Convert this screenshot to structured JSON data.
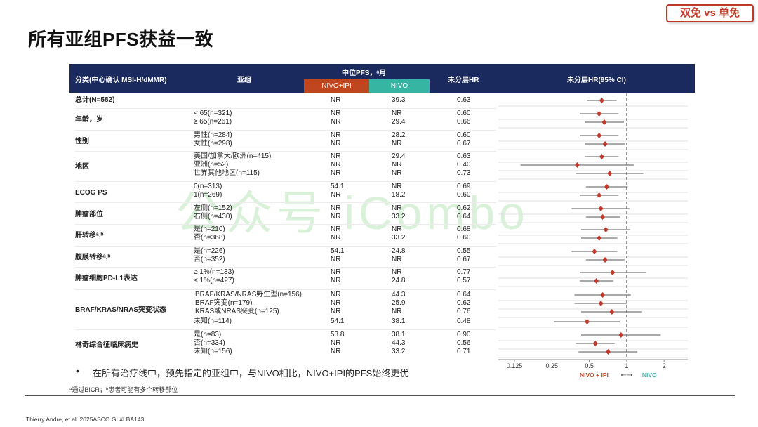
{
  "tag": "双免 vs 单免",
  "title": "所有亚组PFS获益一致",
  "header": {
    "col_category": "分类(中心确认 MSI-H/dMMR)",
    "col_subgroup": "亚组",
    "col_median": "中位PFS，ᵃ月",
    "col_nivo_ipi": "NIVO+IPI",
    "col_nivo": "NIVO",
    "col_hr": "未分层HR",
    "col_plot": "未分层HR(95% CI)"
  },
  "watermark": "公众号 iCombo",
  "bullet": "在所有治疗线中，预先指定的亚组中，与NIVO相比，NIVO+IPI的PFS始终更优",
  "footnote": "ᵃ通过BICR；ᵇ患者可能有多个转移部位",
  "citation": "Thierry Andre, et al. 2025ASCO GI.#LBA143.",
  "chart_data": {
    "type": "forest",
    "xscale": "log2",
    "xlim": [
      0.125,
      2
    ],
    "xticks": [
      "0.125",
      "0.25",
      "0.5",
      "1",
      "2"
    ],
    "reference_line": 1,
    "favors_left": "NIVO + IPI",
    "favors_right": "NIVO",
    "favors_arrow": "←→",
    "rows": [
      {
        "group": "总计(N=582)",
        "sub": "",
        "nivo_ipi": "NR",
        "nivo": "39.3",
        "hr": "0.63",
        "hr_v": 0.63,
        "lo": 0.48,
        "hi": 0.83
      },
      {
        "group": "年龄，岁",
        "sub": "< 65(n=321)",
        "nivo_ipi": "NR",
        "nivo": "NR",
        "hr": "0.60",
        "hr_v": 0.6,
        "lo": 0.42,
        "hi": 0.86
      },
      {
        "group": "",
        "sub": "≥ 65(n=261)",
        "nivo_ipi": "NR",
        "nivo": "29.4",
        "hr": "0.66",
        "hr_v": 0.66,
        "lo": 0.46,
        "hi": 0.95
      },
      {
        "group": "性别",
        "sub": "男性(n=284)",
        "nivo_ipi": "NR",
        "nivo": "28.2",
        "hr": "0.60",
        "hr_v": 0.6,
        "lo": 0.42,
        "hi": 0.86
      },
      {
        "group": "",
        "sub": "女性(n=298)",
        "nivo_ipi": "NR",
        "nivo": "NR",
        "hr": "0.67",
        "hr_v": 0.67,
        "lo": 0.46,
        "hi": 0.97
      },
      {
        "group": "地区",
        "sub": "美国/加拿大/欧洲(n=415)",
        "nivo_ipi": "NR",
        "nivo": "29.4",
        "hr": "0.63",
        "hr_v": 0.63,
        "lo": 0.46,
        "hi": 0.86
      },
      {
        "group": "",
        "sub": "亚洲(n=52)",
        "nivo_ipi": "NR",
        "nivo": "NR",
        "hr": "0.40",
        "hr_v": 0.4,
        "lo": 0.14,
        "hi": 1.15
      },
      {
        "group": "",
        "sub": "世界其他地区(n=115)",
        "nivo_ipi": "NR",
        "nivo": "NR",
        "hr": "0.73",
        "hr_v": 0.73,
        "lo": 0.39,
        "hi": 1.36
      },
      {
        "group": "ECOG PS",
        "sub": "0(n=313)",
        "nivo_ipi": "54.1",
        "nivo": "NR",
        "hr": "0.69",
        "hr_v": 0.69,
        "lo": 0.47,
        "hi": 1.02
      },
      {
        "group": "",
        "sub": "1(n=269)",
        "nivo_ipi": "NR",
        "nivo": "18.2",
        "hr": "0.60",
        "hr_v": 0.6,
        "lo": 0.42,
        "hi": 0.86
      },
      {
        "group": "肿瘤部位",
        "sub": "左侧(n=152)",
        "nivo_ipi": "NR",
        "nivo": "NR",
        "hr": "0.62",
        "hr_v": 0.62,
        "lo": 0.36,
        "hi": 1.05
      },
      {
        "group": "",
        "sub": "右侧(n=430)",
        "nivo_ipi": "NR",
        "nivo": "33.2",
        "hr": "0.64",
        "hr_v": 0.64,
        "lo": 0.47,
        "hi": 0.88
      },
      {
        "group": "肝转移ᵃ,ᵇ",
        "sub": "是(n=210)",
        "nivo_ipi": "NR",
        "nivo": "NR",
        "hr": "0.68",
        "hr_v": 0.68,
        "lo": 0.43,
        "hi": 1.07
      },
      {
        "group": "",
        "sub": "否(n=368)",
        "nivo_ipi": "NR",
        "nivo": "33.2",
        "hr": "0.60",
        "hr_v": 0.6,
        "lo": 0.43,
        "hi": 0.84
      },
      {
        "group": "腹膜转移ᵃ,ᵇ",
        "sub": "是(n=226)",
        "nivo_ipi": "54.1",
        "nivo": "24.8",
        "hr": "0.55",
        "hr_v": 0.55,
        "lo": 0.36,
        "hi": 0.84
      },
      {
        "group": "",
        "sub": "否(n=352)",
        "nivo_ipi": "NR",
        "nivo": "NR",
        "hr": "0.67",
        "hr_v": 0.67,
        "lo": 0.47,
        "hi": 0.96
      },
      {
        "group": "肿瘤细胞PD-L1表达",
        "sub": "≥ 1%(n=133)",
        "nivo_ipi": "NR",
        "nivo": "NR",
        "hr": "0.77",
        "hr_v": 0.77,
        "lo": 0.42,
        "hi": 1.43
      },
      {
        "group": "",
        "sub": "< 1%(n=427)",
        "nivo_ipi": "NR",
        "nivo": "24.8",
        "hr": "0.57",
        "hr_v": 0.57,
        "lo": 0.42,
        "hi": 0.78
      },
      {
        "group": "BRAF/KRAS/NRAS突变状态",
        "sub": "BRAF/KRAS/NRAS野生型(n=156)",
        "nivo_ipi": "NR",
        "nivo": "44.3",
        "hr": "0.64",
        "hr_v": 0.64,
        "lo": 0.38,
        "hi": 1.08
      },
      {
        "group": "",
        "sub": "BRAF突变(n=179)",
        "nivo_ipi": "NR",
        "nivo": "25.9",
        "hr": "0.62",
        "hr_v": 0.62,
        "lo": 0.38,
        "hi": 1.0
      },
      {
        "group": "",
        "sub": "KRAS或NRAS突变(n=125)",
        "nivo_ipi": "NR",
        "nivo": "NR",
        "hr": "0.76",
        "hr_v": 0.76,
        "lo": 0.43,
        "hi": 1.33
      },
      {
        "group": "",
        "sub": "未知(n=114)",
        "nivo_ipi": "54.1",
        "nivo": "38.1",
        "hr": "0.48",
        "hr_v": 0.48,
        "lo": 0.26,
        "hi": 0.88
      },
      {
        "group": "林奇综合征临床病史",
        "sub": "是(n=83)",
        "nivo_ipi": "53.8",
        "nivo": "38.1",
        "hr": "0.90",
        "hr_v": 0.9,
        "lo": 0.43,
        "hi": 1.88
      },
      {
        "group": "",
        "sub": "否(n=334)",
        "nivo_ipi": "NR",
        "nivo": "44.3",
        "hr": "0.56",
        "hr_v": 0.56,
        "lo": 0.39,
        "hi": 0.8
      },
      {
        "group": "",
        "sub": "未知(n=156)",
        "nivo_ipi": "NR",
        "nivo": "33.2",
        "hr": "0.71",
        "hr_v": 0.71,
        "lo": 0.41,
        "hi": 1.22
      }
    ]
  }
}
